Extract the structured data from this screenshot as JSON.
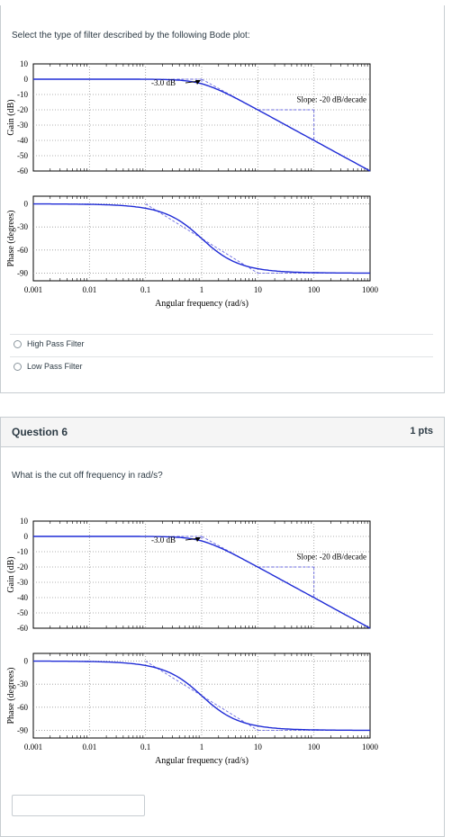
{
  "question5": {
    "prompt": "Select the type of filter described by the following Bode plot:",
    "answers": [
      {
        "label": "High Pass Filter"
      },
      {
        "label": "Low Pass Filter"
      }
    ]
  },
  "question6": {
    "title": "Question 6",
    "points": "1 pts",
    "prompt": "What is the cut off frequency in rad/s?",
    "answer_value": ""
  },
  "bode": {
    "gain_ylabel": "Gain (dB)",
    "phase_ylabel": "Phase (degrees)",
    "xlabel": "Angular frequency (rad/s)",
    "x_ticks": [
      "0.001",
      "0.01",
      "0.1",
      "1",
      "10",
      "100",
      "1000"
    ],
    "gain_ticks": [
      "10",
      "0",
      "-10",
      "-20",
      "-30",
      "-40",
      "-50",
      "-60"
    ],
    "phase_ticks": [
      "0",
      "-30",
      "-60",
      "-90"
    ],
    "annotation_3db": "-3.0  dB",
    "annotation_slope": "Slope: -20 dB/decade",
    "curve_color": "#1f2bd6",
    "asymptote_color": "#6a6ae0"
  },
  "chart_data": [
    {
      "type": "line",
      "xlabel": "Angular frequency (rad/s)",
      "ylabel": "Gain (dB)",
      "x_scale": "log",
      "xlim": [
        0.001,
        1000
      ],
      "ylim": [
        -60,
        10
      ],
      "series": [
        {
          "x": [
            0.001,
            0.01,
            0.1,
            0.5,
            1,
            2,
            10,
            100,
            1000
          ],
          "y": [
            0,
            0,
            -0.04,
            -0.97,
            -3.0,
            -6.99,
            -20.04,
            -40,
            -60
          ]
        }
      ],
      "annotations": [
        "-3.0  dB",
        "Slope: -20 dB/decade"
      ]
    },
    {
      "type": "line",
      "xlabel": "Angular frequency (rad/s)",
      "ylabel": "Phase (degrees)",
      "x_scale": "log",
      "xlim": [
        0.001,
        1000
      ],
      "ylim": [
        -100,
        10
      ],
      "series": [
        {
          "x": [
            0.001,
            0.01,
            0.1,
            0.3,
            1,
            3,
            10,
            100,
            1000
          ],
          "y": [
            -0.06,
            -0.57,
            -5.7,
            -16.7,
            -45,
            -71.6,
            -84.3,
            -89.4,
            -89.9
          ]
        }
      ]
    }
  ]
}
